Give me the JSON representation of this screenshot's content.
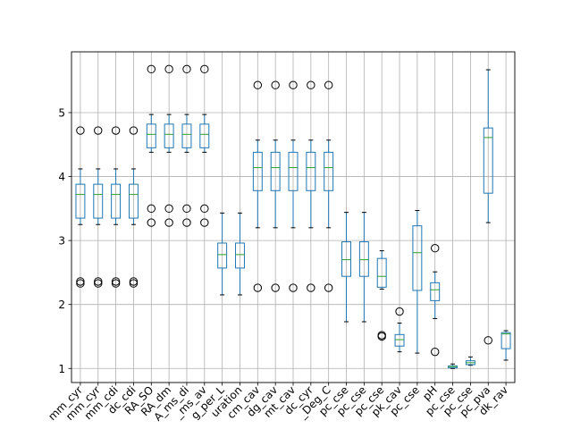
{
  "chart_data": {
    "type": "boxplot",
    "title": "",
    "xlabel": "",
    "ylabel": "",
    "ylim": [
      0.78,
      5.95
    ],
    "yticks": [
      1,
      2,
      3,
      4,
      5
    ],
    "grid": true,
    "colors": {
      "box": "#1f77b4",
      "median": "#2ca02c",
      "grid": "#b0b0b0"
    },
    "categories": [
      "mm_cyr",
      "mm_cyr",
      "mm_cdi",
      "dc_cdi",
      "RA_SO",
      "RA_dm",
      "A_ms_di",
      "_ms_av",
      "g_per_L",
      "uration",
      "cm_cav",
      "dg_cav",
      "mt_cav",
      "dc_cyr",
      "_Deg_C",
      "pc_cse",
      "pc_cse",
      "pc_cse",
      "pk_cav",
      "pc_cse",
      "pH",
      "pc_cse",
      "pc_cse",
      "pc_pva",
      "dk_rav"
    ],
    "boxes": [
      {
        "whislo": 3.25,
        "q1": 3.35,
        "med": 3.72,
        "q3": 3.88,
        "whishi": 4.12,
        "fliers": [
          2.33,
          2.36,
          4.72
        ]
      },
      {
        "whislo": 3.25,
        "q1": 3.35,
        "med": 3.72,
        "q3": 3.88,
        "whishi": 4.12,
        "fliers": [
          2.33,
          2.36,
          4.72
        ]
      },
      {
        "whislo": 3.25,
        "q1": 3.35,
        "med": 3.72,
        "q3": 3.88,
        "whishi": 4.12,
        "fliers": [
          2.33,
          2.36,
          4.72
        ]
      },
      {
        "whislo": 3.25,
        "q1": 3.35,
        "med": 3.72,
        "q3": 3.88,
        "whishi": 4.12,
        "fliers": [
          2.33,
          2.36,
          4.72
        ]
      },
      {
        "whislo": 4.38,
        "q1": 4.45,
        "med": 4.66,
        "q3": 4.82,
        "whishi": 4.97,
        "fliers": [
          3.28,
          3.5,
          5.68
        ]
      },
      {
        "whislo": 4.38,
        "q1": 4.45,
        "med": 4.66,
        "q3": 4.82,
        "whishi": 4.97,
        "fliers": [
          3.28,
          3.5,
          5.68
        ]
      },
      {
        "whislo": 4.38,
        "q1": 4.45,
        "med": 4.66,
        "q3": 4.82,
        "whishi": 4.97,
        "fliers": [
          3.28,
          3.5,
          5.68
        ]
      },
      {
        "whislo": 4.38,
        "q1": 4.45,
        "med": 4.66,
        "q3": 4.82,
        "whishi": 4.97,
        "fliers": [
          3.28,
          3.5,
          5.68
        ]
      },
      {
        "whislo": 2.15,
        "q1": 2.57,
        "med": 2.78,
        "q3": 2.96,
        "whishi": 3.43,
        "fliers": []
      },
      {
        "whislo": 2.15,
        "q1": 2.57,
        "med": 2.78,
        "q3": 2.96,
        "whishi": 3.43,
        "fliers": []
      },
      {
        "whislo": 3.2,
        "q1": 3.78,
        "med": 4.14,
        "q3": 4.38,
        "whishi": 4.57,
        "fliers": [
          2.26,
          5.43
        ]
      },
      {
        "whislo": 3.2,
        "q1": 3.78,
        "med": 4.14,
        "q3": 4.38,
        "whishi": 4.57,
        "fliers": [
          2.26,
          5.43
        ]
      },
      {
        "whislo": 3.2,
        "q1": 3.78,
        "med": 4.14,
        "q3": 4.38,
        "whishi": 4.57,
        "fliers": [
          2.26,
          5.43
        ]
      },
      {
        "whislo": 3.2,
        "q1": 3.78,
        "med": 4.14,
        "q3": 4.38,
        "whishi": 4.57,
        "fliers": [
          2.26,
          5.43
        ]
      },
      {
        "whislo": 3.2,
        "q1": 3.78,
        "med": 4.14,
        "q3": 4.38,
        "whishi": 4.57,
        "fliers": [
          2.26,
          5.43
        ]
      },
      {
        "whislo": 1.73,
        "q1": 2.44,
        "med": 2.7,
        "q3": 2.98,
        "whishi": 3.44,
        "fliers": []
      },
      {
        "whislo": 1.73,
        "q1": 2.44,
        "med": 2.7,
        "q3": 2.98,
        "whishi": 3.44,
        "fliers": []
      },
      {
        "whislo": 2.24,
        "q1": 2.27,
        "med": 2.44,
        "q3": 2.72,
        "whishi": 2.84,
        "fliers": [
          1.5,
          1.52
        ]
      },
      {
        "whislo": 1.26,
        "q1": 1.35,
        "med": 1.45,
        "q3": 1.53,
        "whishi": 1.71,
        "fliers": [
          1.89
        ]
      },
      {
        "whislo": 1.24,
        "q1": 2.22,
        "med": 2.81,
        "q3": 3.23,
        "whishi": 3.47,
        "fliers": []
      },
      {
        "whislo": 1.78,
        "q1": 2.06,
        "med": 2.23,
        "q3": 2.34,
        "whishi": 2.51,
        "fliers": [
          1.26,
          2.88
        ]
      },
      {
        "whislo": 1.0,
        "q1": 1.01,
        "med": 1.03,
        "q3": 1.04,
        "whishi": 1.07,
        "fliers": []
      },
      {
        "whislo": 1.05,
        "q1": 1.06,
        "med": 1.09,
        "q3": 1.12,
        "whishi": 1.18,
        "fliers": []
      },
      {
        "whislo": 3.28,
        "q1": 3.74,
        "med": 4.61,
        "q3": 4.76,
        "whishi": 5.67,
        "fliers": [
          1.44
        ]
      },
      {
        "whislo": 1.13,
        "q1": 1.31,
        "med": 1.54,
        "q3": 1.56,
        "whishi": 1.59,
        "fliers": []
      }
    ]
  }
}
